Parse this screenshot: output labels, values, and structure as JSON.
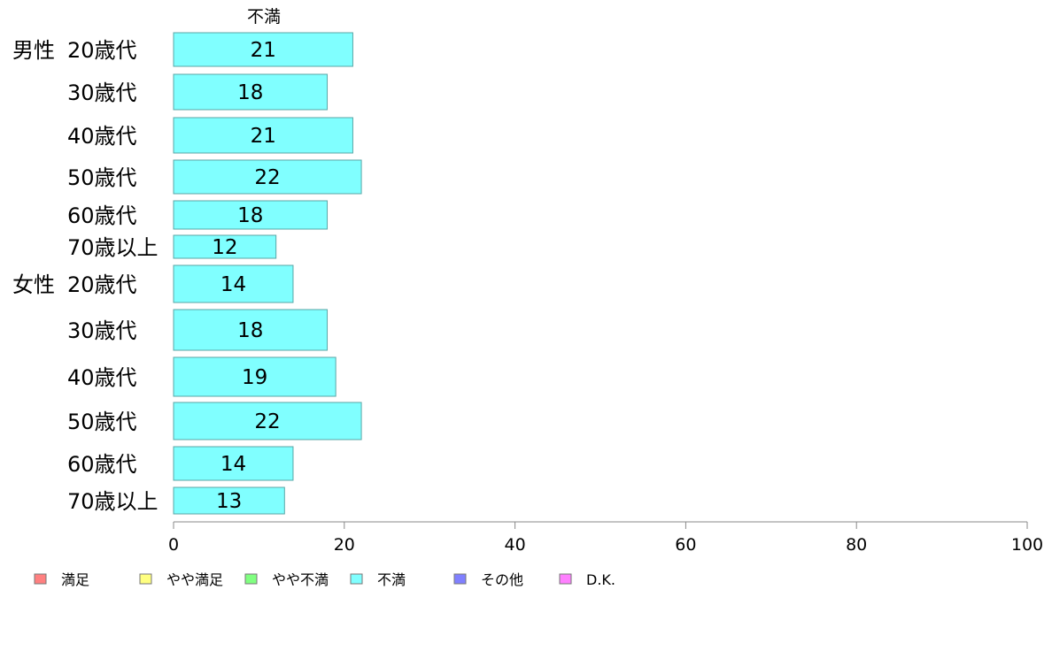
{
  "chart_data": {
    "type": "bar",
    "orientation": "horizontal",
    "title": "不満",
    "groups": [
      {
        "name": "男性",
        "categories": [
          "20歳代",
          "30歳代",
          "40歳代",
          "50歳代",
          "60歳代",
          "70歳以上"
        ],
        "values": [
          21,
          18,
          21,
          22,
          18,
          12
        ]
      },
      {
        "name": "女性",
        "categories": [
          "20歳代",
          "30歳代",
          "40歳代",
          "50歳代",
          "60歳代",
          "70歳以上"
        ],
        "values": [
          14,
          18,
          19,
          22,
          14,
          13
        ]
      }
    ],
    "xlim": [
      0,
      100
    ],
    "xticks": [
      0,
      20,
      40,
      60,
      80,
      100
    ],
    "grid": false,
    "bar_color": "#80ffff",
    "bar_stroke": "#5aa6a6",
    "legend_position": "bottom",
    "legend": [
      {
        "label": "満足",
        "color": "#ff8080"
      },
      {
        "label": "やや満足",
        "color": "#ffff80"
      },
      {
        "label": "やや不満",
        "color": "#80ff80"
      },
      {
        "label": "不満",
        "color": "#80ffff"
      },
      {
        "label": "その他",
        "color": "#8080ff"
      },
      {
        "label": "D.K.",
        "color": "#ff80ff"
      }
    ]
  }
}
